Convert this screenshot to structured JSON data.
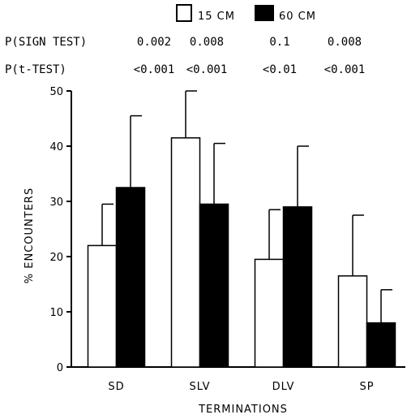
{
  "chart_data": {
    "type": "bar",
    "xlabel": "TERMINATIONS",
    "ylabel": "% ENCOUNTERS",
    "ylim": [
      0,
      50
    ],
    "yticks": [
      "0",
      "10",
      "20",
      "30",
      "40",
      "50"
    ],
    "categories": [
      "SD",
      "SLV",
      "DLV",
      "SP"
    ],
    "series": [
      {
        "name": "15 CM",
        "color": "#ffffff",
        "values": [
          22,
          41.5,
          19.5,
          16.5
        ],
        "error": [
          7.5,
          8.5,
          9,
          11
        ]
      },
      {
        "name": "60 CM",
        "color": "#000000",
        "values": [
          32.5,
          29.5,
          29,
          8
        ],
        "error": [
          13,
          11,
          11,
          6
        ]
      }
    ],
    "legend_position": "top",
    "stats": {
      "sign_test_label": "P(SIGN TEST)",
      "sign_test_values": [
        "0.002",
        "0.008",
        "0.1",
        "0.008"
      ],
      "t_test_label": "P(t-TEST)",
      "t_test_values": [
        "<0.001",
        "<0.001",
        "<0.01",
        "<0.001"
      ]
    }
  }
}
